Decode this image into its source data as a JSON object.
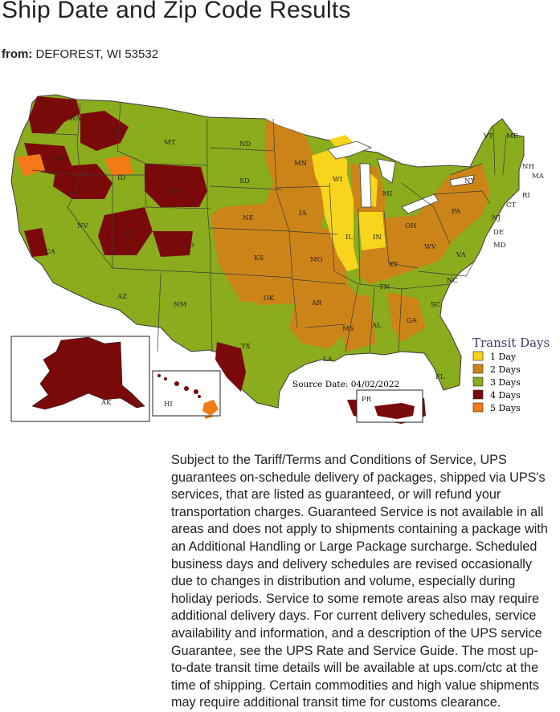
{
  "page": {
    "title": "Ship Date and Zip Code Results",
    "from_label": "from:",
    "from_value": "DEFOREST, WI 53532"
  },
  "map": {
    "source_date": "Source Date: 04/02/2022",
    "legend": {
      "title": "Transit Days",
      "items": [
        {
          "label": "1 Day",
          "color": "#f7d51d"
        },
        {
          "label": "2 Days",
          "color": "#cc8418"
        },
        {
          "label": "3 Days",
          "color": "#8aac1d"
        },
        {
          "label": "4 Days",
          "color": "#7a0a0a"
        },
        {
          "label": "5 Days",
          "color": "#f37a17"
        }
      ]
    },
    "state_labels": {
      "WA": "WA",
      "OR": "OR",
      "CA": "CA",
      "NV": "NV",
      "ID": "ID",
      "MT": "MT",
      "WY": "WY",
      "UT": "UT",
      "CO": "CO",
      "AZ": "AZ",
      "NM": "NM",
      "TX": "TX",
      "ND": "ND",
      "SD": "SD",
      "NE": "NE",
      "KS": "KS",
      "OK": "OK",
      "MN": "MN",
      "IA": "IA",
      "MO": "MO",
      "AR": "AR",
      "LA": "LA",
      "WI": "WI",
      "IL": "IL",
      "MI": "MI",
      "IN": "IN",
      "OH": "OH",
      "KY": "KY",
      "TN": "TN",
      "MS": "MS",
      "AL": "AL",
      "GA": "GA",
      "FL": "FL",
      "SC": "SC",
      "NC": "NC",
      "VA": "VA",
      "WV": "WV",
      "PA": "PA",
      "NY": "NY",
      "VT": "VT",
      "NH": "NH",
      "ME": "ME",
      "MA": "MA",
      "CT": "CT",
      "RI": "RI",
      "NJ": "NJ",
      "DE": "DE",
      "MD": "MD",
      "AK": "AK",
      "HI": "HI",
      "PR": "PR"
    }
  },
  "terms_text": "Subject to the Tariff/Terms and Conditions of Service, UPS guarantees on-schedule delivery of packages, shipped via UPS's services, that are listed as guaranteed, or will refund your transportation charges. Guaranteed Service is not available in all areas and does not apply to shipments containing a package with an Additional Handling or Large Package surcharge. Scheduled business days and delivery schedules are revised occasionally due to changes in distribution and volume, especially during holiday periods. Service to some remote areas also may require additional delivery days. For current delivery schedules, service availability and information, and a description of the UPS service Guarantee, see the UPS Rate and Service Guide. The most up-to-date transit time details will be available at ups.com/ctc at the time of shipping. Certain commodities and high value shipments may require additional transit time for customs clearance."
}
